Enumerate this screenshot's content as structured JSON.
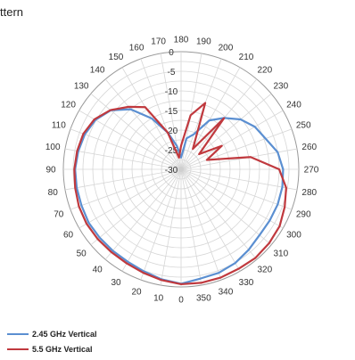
{
  "chart_data": {
    "type": "polar-line",
    "title": "ttern",
    "angles_deg": [
      0,
      10,
      20,
      30,
      40,
      50,
      60,
      70,
      80,
      90,
      100,
      110,
      120,
      130,
      140,
      150,
      160,
      170,
      180,
      190,
      200,
      210,
      220,
      230,
      240,
      250,
      260,
      270,
      280,
      290,
      300,
      310,
      320,
      330,
      340,
      350
    ],
    "radial_ticks": [
      -30,
      -25,
      -20,
      -15,
      -10,
      -5,
      0
    ],
    "rlim": [
      -30,
      0
    ],
    "angle_direction": "counterclockwise",
    "zero_location": "bottom",
    "grid": true,
    "legend_position": "bottom-left",
    "series": [
      {
        "name": "2.45 GHz Vertical",
        "color": "#5b8fd1",
        "values": [
          -0.8,
          -1.5,
          -2.3,
          -2.8,
          -2.9,
          -2.9,
          -2.8,
          -3.0,
          -3.0,
          -3.0,
          -3.4,
          -3.9,
          -4.8,
          -6.6,
          -10.0,
          -15.0,
          -20.0,
          -24.0,
          -27.0,
          -22.0,
          -20.5,
          -15.6,
          -12.9,
          -10.2,
          -8.3,
          -7.1,
          -5.0,
          -4.0,
          -3.8,
          -3.8,
          -3.9,
          -3.9,
          -3.2,
          -2.4,
          -1.9,
          -1.7
        ]
      },
      {
        "name": "5.5 GHz Vertical",
        "color": "#c0393e",
        "values": [
          -0.7,
          -1.3,
          -1.9,
          -2.3,
          -2.4,
          -2.3,
          -2.2,
          -2.3,
          -2.6,
          -2.8,
          -3.1,
          -3.5,
          -4.5,
          -6.5,
          -9.2,
          -11.7,
          -20.0,
          -27.0,
          -24.0,
          -16.0,
          -12.0,
          -24.0,
          -13.0,
          -24.0,
          -18.0,
          -23.0,
          -12.0,
          -5.0,
          -2.8,
          -1.9,
          -1.0,
          -0.7,
          -0.5,
          -0.7,
          -0.6,
          -0.6
        ]
      }
    ]
  }
}
